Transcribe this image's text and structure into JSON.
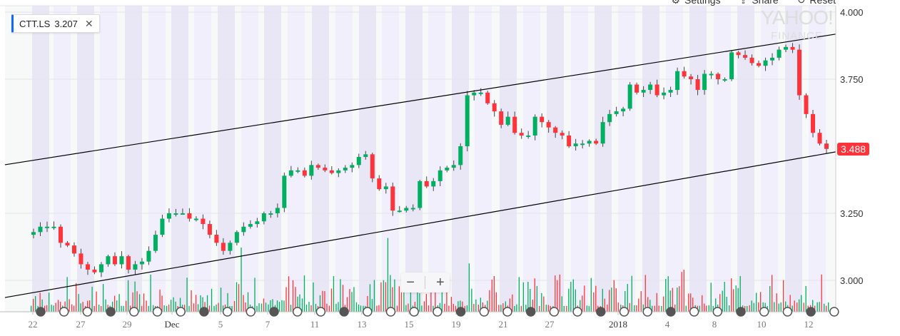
{
  "toolbar": {
    "settings": "Settings",
    "share": "Share",
    "reset": "Reset"
  },
  "legend": {
    "symbol": "CTT.LS",
    "value": "3.207"
  },
  "watermark": {
    "line1": "YAHOO!",
    "line2": "FINANCE"
  },
  "zoom_controls": {
    "minus": "−",
    "plus": "+"
  },
  "chart_data": {
    "type": "candlestick",
    "symbol": "CTT.LS",
    "last_price": "3.488",
    "last_price_color": "#ff333a",
    "up_color": "#00b061",
    "down_color": "#ff333a",
    "ylim": [
      2.88,
      4.02
    ],
    "y_ticks": [
      "4.000",
      "3.750",
      "3.250",
      "3.000"
    ],
    "y_tick_values": [
      4.0,
      3.75,
      3.25,
      3.0
    ],
    "x_ticks": [
      "22",
      "27",
      "29",
      "Dec",
      "5",
      "7",
      "11",
      "13",
      "15",
      "19",
      "21",
      "27",
      "2018",
      "4",
      "8",
      "10",
      "12"
    ],
    "closes": [
      3.18,
      3.2,
      3.2,
      3.2,
      3.14,
      3.13,
      3.1,
      3.06,
      3.04,
      3.03,
      3.06,
      3.09,
      3.06,
      3.09,
      3.04,
      3.06,
      3.07,
      3.11,
      3.17,
      3.23,
      3.25,
      3.25,
      3.25,
      3.23,
      3.23,
      3.21,
      3.17,
      3.14,
      3.11,
      3.14,
      3.18,
      3.2,
      3.21,
      3.22,
      3.25,
      3.25,
      3.27,
      3.39,
      3.41,
      3.41,
      3.39,
      3.43,
      3.42,
      3.41,
      3.4,
      3.41,
      3.42,
      3.43,
      3.46,
      3.47,
      3.38,
      3.34,
      3.35,
      3.26,
      3.26,
      3.27,
      3.27,
      3.37,
      3.35,
      3.37,
      3.41,
      3.42,
      3.43,
      3.5,
      3.69,
      3.7,
      3.7,
      3.66,
      3.63,
      3.58,
      3.61,
      3.55,
      3.54,
      3.54,
      3.61,
      3.59,
      3.57,
      3.55,
      3.54,
      3.5,
      3.51,
      3.51,
      3.52,
      3.51,
      3.59,
      3.62,
      3.63,
      3.64,
      3.73,
      3.7,
      3.71,
      3.73,
      3.69,
      3.7,
      3.71,
      3.78,
      3.76,
      3.75,
      3.71,
      3.77,
      3.77,
      3.75,
      3.75,
      3.85,
      3.84,
      3.83,
      3.81,
      3.8,
      3.82,
      3.83,
      3.86,
      3.87,
      3.86,
      3.69,
      3.62,
      3.55,
      3.51,
      3.49
    ],
    "trendlines": [
      {
        "start": 3.431,
        "end": 3.918
      },
      {
        "start": 2.936,
        "end": 3.479
      }
    ],
    "grid": true
  }
}
